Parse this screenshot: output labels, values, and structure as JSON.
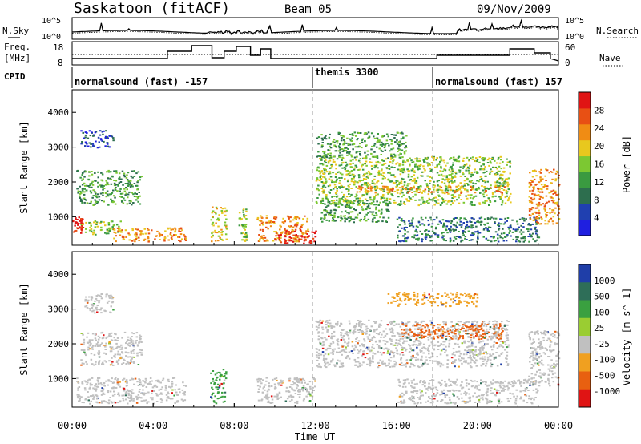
{
  "header": {
    "station": "Saskatoon (fitACF)",
    "beam": "Beam 05",
    "date": "09/Nov/2009"
  },
  "noise_panel": {
    "left_label": "N.Sky",
    "right_label": "N.Search",
    "left_ticks": [
      "10^5",
      "10^0"
    ],
    "right_ticks": [
      "10^5",
      "10^0"
    ]
  },
  "freq_panel": {
    "left_label_1": "Freq.",
    "left_label_2": "[MHz]",
    "right_label": "Nave",
    "left_ticks": [
      "18",
      "8"
    ],
    "right_ticks": [
      "60",
      "0"
    ]
  },
  "cpid": {
    "label": "CPID",
    "segments": [
      {
        "name": "normalsound (fast) -157",
        "start": 0,
        "end": 12
      },
      {
        "name": "themis 3300",
        "start": 12,
        "end": 18
      },
      {
        "name": "normalsound (fast) 157",
        "start": 18,
        "end": 24
      }
    ]
  },
  "colors": {
    "power": [
      "#1f1fe0",
      "#2040b0",
      "#2d6e4e",
      "#3a9a40",
      "#7cc832",
      "#e8c81e",
      "#f08c14",
      "#e85014",
      "#e01414"
    ],
    "velocity_gray": "#c0c0c0"
  },
  "chart_data": [
    {
      "type": "heatmap",
      "name": "Power",
      "xlabel": "",
      "ylabel": "Slant Range [km]",
      "x_unit": "hours UT",
      "xlim": [
        0,
        24
      ],
      "ylim": [
        180,
        4650
      ],
      "yticks": [
        "1000",
        "2000",
        "3000",
        "4000"
      ],
      "colorbar": {
        "label": "Power [dB]",
        "ticks": [
          "4",
          "8",
          "12",
          "16",
          "20",
          "24",
          "28"
        ]
      },
      "regions": [
        {
          "t0": 0.0,
          "t1": 0.5,
          "r0": 550,
          "r1": 1050,
          "level": 8
        },
        {
          "t0": 0.4,
          "t1": 2.4,
          "r0": 500,
          "r1": 900,
          "level": 4
        },
        {
          "t0": 2.0,
          "t1": 5.6,
          "r0": 300,
          "r1": 700,
          "level": 6
        },
        {
          "t0": 0.2,
          "t1": 3.4,
          "r0": 1350,
          "r1": 2350,
          "level": 3
        },
        {
          "t0": 0.4,
          "t1": 2.0,
          "r0": 3000,
          "r1": 3500,
          "level": 1
        },
        {
          "t0": 6.8,
          "t1": 7.6,
          "r0": 300,
          "r1": 1300,
          "level": 5
        },
        {
          "t0": 8.2,
          "t1": 8.6,
          "r0": 300,
          "r1": 1250,
          "level": 4
        },
        {
          "t0": 9.1,
          "t1": 11.6,
          "r0": 300,
          "r1": 1050,
          "level": 6
        },
        {
          "t0": 10.0,
          "t1": 12.0,
          "r0": 250,
          "r1": 650,
          "level": 8
        },
        {
          "t0": 12.0,
          "t1": 21.6,
          "r0": 1350,
          "r1": 2750,
          "level": 4
        },
        {
          "t0": 12.0,
          "t1": 16.5,
          "r0": 2700,
          "r1": 3450,
          "level": 3
        },
        {
          "t0": 14.0,
          "t1": 21.5,
          "r0": 1700,
          "r1": 1900,
          "level": 6
        },
        {
          "t0": 12.2,
          "t1": 15.6,
          "r0": 850,
          "r1": 1500,
          "level": 3
        },
        {
          "t0": 16.0,
          "t1": 23.0,
          "r0": 300,
          "r1": 1000,
          "level": 2
        },
        {
          "t0": 22.5,
          "t1": 24.0,
          "r0": 800,
          "r1": 2400,
          "level": 6
        }
      ]
    },
    {
      "type": "heatmap",
      "name": "Velocity",
      "xlabel": "Time UT",
      "ylabel": "Slant Range [km]",
      "x_unit": "hours UT",
      "xlim": [
        0,
        24
      ],
      "ylim": [
        180,
        4650
      ],
      "xticks": [
        "00:00",
        "04:00",
        "08:00",
        "12:00",
        "16:00",
        "20:00",
        "00:00"
      ],
      "yticks": [
        "1000",
        "2000",
        "3000",
        "4000"
      ],
      "colorbar": {
        "label": "Velocity [m s^-1]",
        "ticks": [
          "1000",
          "500",
          "100",
          "25",
          "-25",
          "-100",
          "-500",
          "-1000"
        ],
        "colors": [
          "#1f3ea8",
          "#2e6e58",
          "#3aa040",
          "#9acd32",
          "#c0c0c0",
          "#f0a020",
          "#e86010",
          "#e01414"
        ]
      },
      "regions": [
        {
          "t0": 0.2,
          "t1": 5.6,
          "r0": 300,
          "r1": 1050,
          "label": "-25"
        },
        {
          "t0": 0.4,
          "t1": 3.4,
          "r0": 1400,
          "r1": 2350,
          "label": "-25"
        },
        {
          "t0": 0.6,
          "t1": 2.0,
          "r0": 2900,
          "r1": 3500,
          "label": "-25"
        },
        {
          "t0": 6.8,
          "t1": 7.6,
          "r0": 300,
          "r1": 1300,
          "label": "100"
        },
        {
          "t0": 9.1,
          "t1": 12.0,
          "r0": 300,
          "r1": 1050,
          "label": "-25"
        },
        {
          "t0": 12.0,
          "t1": 21.5,
          "r0": 1350,
          "r1": 2700,
          "label": "-25"
        },
        {
          "t0": 16.2,
          "t1": 21.2,
          "r0": 2150,
          "r1": 2600,
          "label": "-500"
        },
        {
          "t0": 15.5,
          "t1": 20.0,
          "r0": 3100,
          "r1": 3500,
          "label": "-100"
        },
        {
          "t0": 16.0,
          "t1": 23.0,
          "r0": 300,
          "r1": 1000,
          "label": "-25"
        },
        {
          "t0": 22.5,
          "t1": 24.0,
          "r0": 800,
          "r1": 2400,
          "label": "-25"
        }
      ]
    }
  ]
}
